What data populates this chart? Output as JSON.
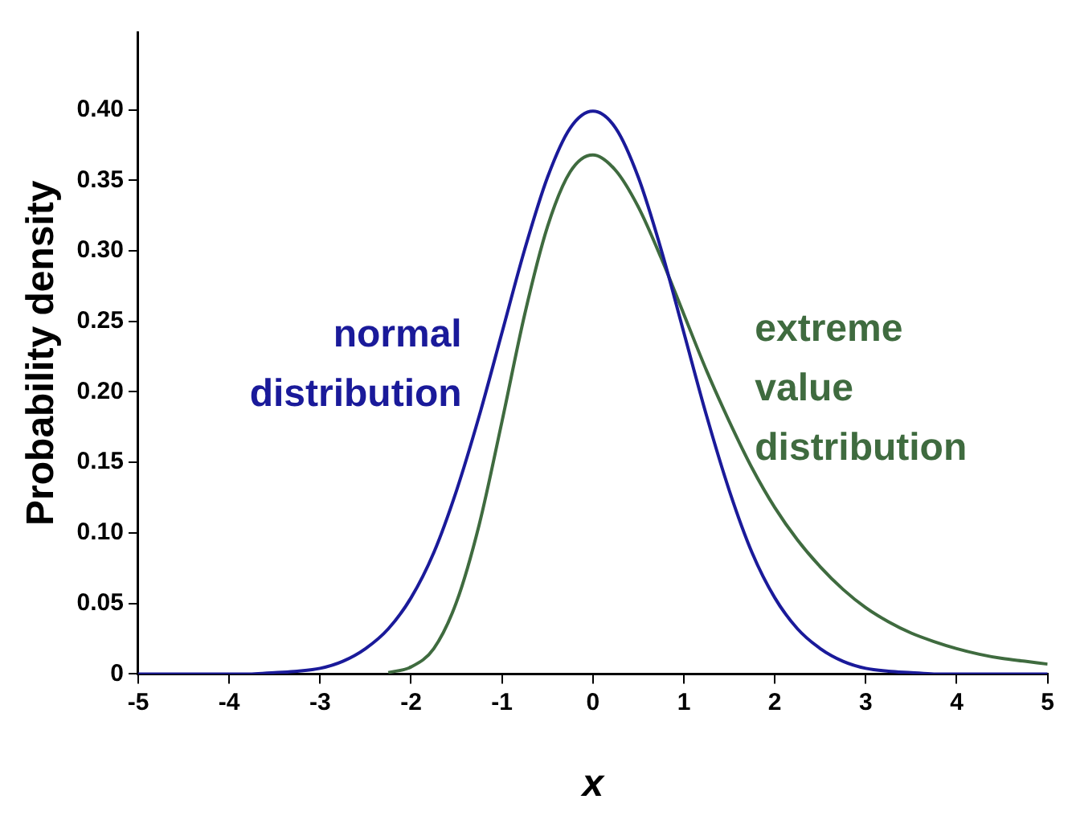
{
  "chart_data": {
    "type": "line",
    "xlabel": "x",
    "ylabel": "Probability density",
    "x": [
      -5,
      -4.75,
      -4.5,
      -4.25,
      -4,
      -3.75,
      -3.5,
      -3.25,
      -3,
      -2.75,
      -2.5,
      -2.25,
      -2,
      -1.75,
      -1.5,
      -1.25,
      -1,
      -0.75,
      -0.5,
      -0.25,
      0,
      0.25,
      0.5,
      0.75,
      1,
      1.25,
      1.5,
      1.75,
      2,
      2.25,
      2.5,
      2.75,
      3,
      3.25,
      3.5,
      3.75,
      4,
      4.25,
      4.5,
      4.75,
      5
    ],
    "series": [
      {
        "name": "normal distribution",
        "color": "#1a1a9a",
        "values": [
          0,
          0,
          0,
          0,
          0,
          0,
          0.001,
          0.002,
          0.004,
          0.009,
          0.018,
          0.032,
          0.054,
          0.086,
          0.13,
          0.183,
          0.242,
          0.301,
          0.352,
          0.387,
          0.399,
          0.387,
          0.352,
          0.301,
          0.242,
          0.183,
          0.13,
          0.086,
          0.054,
          0.032,
          0.018,
          0.009,
          0.004,
          0.002,
          0.001,
          0,
          0,
          0,
          0,
          0,
          0
        ]
      },
      {
        "name": "extreme value distribution",
        "color": "#3f6b3f",
        "values": [
          null,
          null,
          null,
          null,
          null,
          null,
          null,
          null,
          null,
          null,
          null,
          0.001,
          0.005,
          0.018,
          0.051,
          0.106,
          0.179,
          0.255,
          0.317,
          0.356,
          0.368,
          0.357,
          0.331,
          0.295,
          0.255,
          0.215,
          0.179,
          0.146,
          0.118,
          0.095,
          0.076,
          0.06,
          0.047,
          0.037,
          0.029,
          0.023,
          0.018,
          0.014,
          0.011,
          0.009,
          0.007
        ]
      }
    ],
    "xlim": [
      -5,
      5
    ],
    "xticks": [
      -5,
      -4,
      -3,
      -2,
      -1,
      0,
      1,
      2,
      3,
      4,
      5
    ],
    "ylim": [
      0,
      0.455
    ],
    "yticks": [
      0,
      {
        "value": 0.05,
        "label": "0.05"
      },
      {
        "value": 0.1,
        "label": "0.10"
      },
      {
        "value": 0.15,
        "label": "0.15"
      },
      {
        "value": 0.2,
        "label": "0.20"
      },
      {
        "value": 0.25,
        "label": "0.25"
      },
      {
        "value": 0.3,
        "label": "0.30"
      },
      {
        "value": 0.35,
        "label": "0.35"
      },
      {
        "value": 0.4,
        "label": "0.40"
      }
    ],
    "grid": false,
    "legend": false,
    "marker": "none",
    "line_style": "solid"
  }
}
